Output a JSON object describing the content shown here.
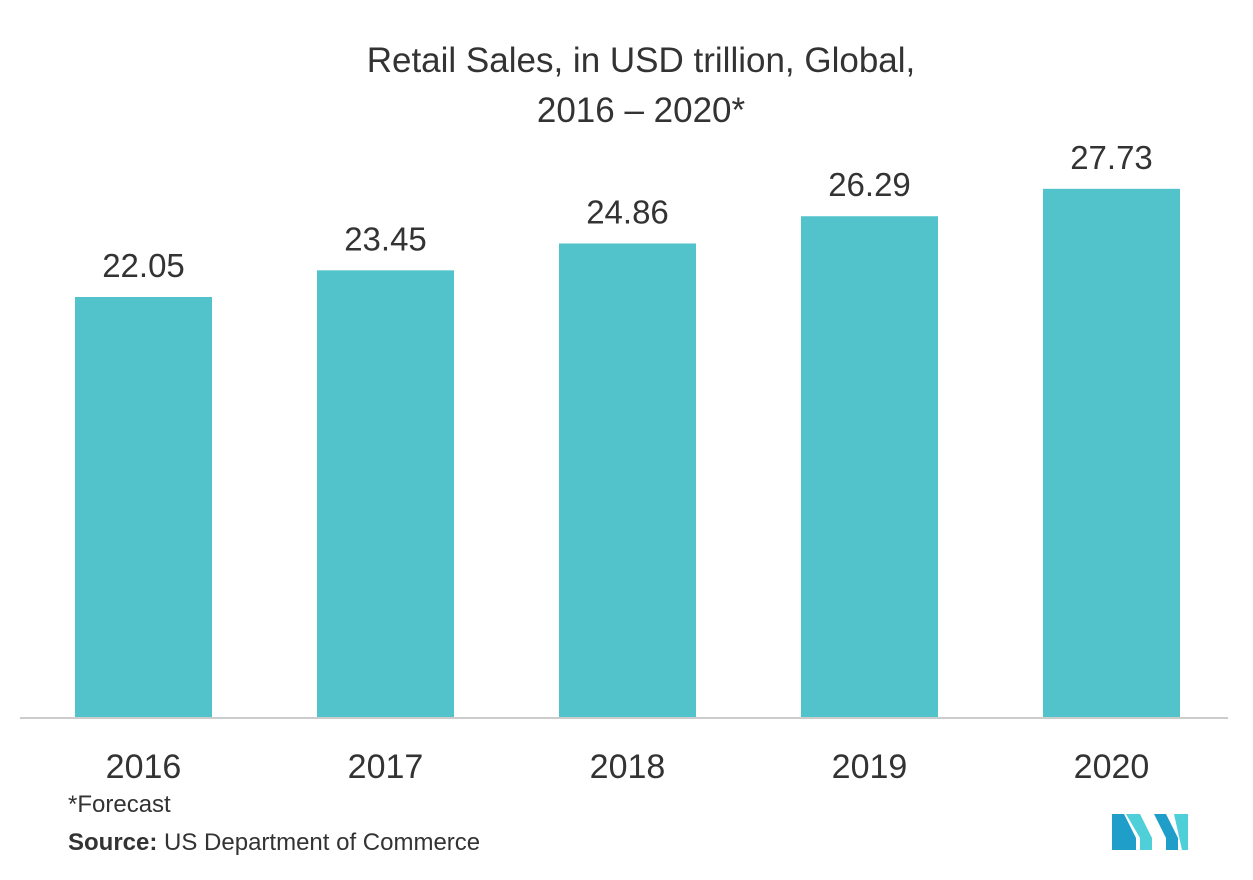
{
  "chart_data": {
    "type": "bar",
    "title": "Retail Sales, in USD trillion, Global,",
    "subtitle": "2016 – 2020*",
    "categories": [
      "2016",
      "2017",
      "2018",
      "2019",
      "2020"
    ],
    "values": [
      22.05,
      23.45,
      24.86,
      26.29,
      27.73
    ],
    "value_labels": [
      "22.05",
      "23.45",
      "24.86",
      "26.29",
      "27.73"
    ],
    "xlabel": "",
    "ylabel": "",
    "ylim": [
      0,
      28
    ],
    "grid": false,
    "bar_color": "#52c3ca"
  },
  "footnote": "*Forecast",
  "source": {
    "label": "Source:",
    "text": " US Department of Commerce"
  },
  "logo": {
    "icon": "mordor-logo-icon",
    "colors": [
      "#1f9ec9",
      "#4fd0d8",
      "#1a6fa0"
    ]
  }
}
